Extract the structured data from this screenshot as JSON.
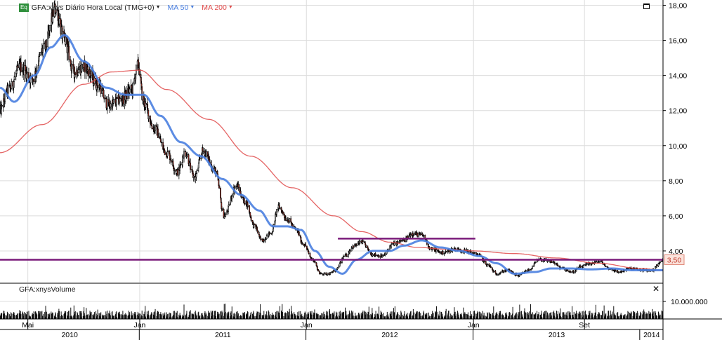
{
  "legend": {
    "badge": "Eq",
    "symbol": "GFA:xnys",
    "interval": "Diário",
    "time": "Hora Local (TMG+0)",
    "ma50": "MA 50",
    "ma200": "MA 200",
    "ma50_color": "#4a7fe0",
    "ma200_color": "#e04a4a"
  },
  "volume_label": "GFA:xnysVolume",
  "last_price_badge": "3,50",
  "chart_data": {
    "type": "candlestick",
    "price_axis": {
      "ylim": [
        2.2,
        18.3
      ],
      "ticks": [
        "18,00",
        "16,00",
        "14,00",
        "12,00",
        "10,00",
        "8,00",
        "6,00",
        "4,00"
      ],
      "tick_values": [
        18,
        16,
        14,
        12,
        10,
        8,
        6,
        4
      ]
    },
    "volume_axis": {
      "ticks": [
        "10.000.000"
      ],
      "tick_values": [
        10000000
      ],
      "ylim": [
        0,
        20000000
      ]
    },
    "x_range": [
      "2010-03-01",
      "2014-02-20"
    ],
    "month_labels": [
      {
        "label": "Mai",
        "date": "2010-05-01"
      },
      {
        "label": "Jan",
        "date": "2011-01-01"
      },
      {
        "label": "Jan",
        "date": "2012-01-01"
      },
      {
        "label": "Jan",
        "date": "2013-01-01"
      },
      {
        "label": "Set",
        "date": "2013-09-01"
      }
    ],
    "year_labels": [
      {
        "label": "2010",
        "start": "2010-03-01",
        "end": "2010-12-31"
      },
      {
        "label": "2011",
        "start": "2011-01-01",
        "end": "2011-12-31"
      },
      {
        "label": "2012",
        "start": "2012-01-01",
        "end": "2012-12-31"
      },
      {
        "label": "2013",
        "start": "2013-01-01",
        "end": "2013-12-31"
      },
      {
        "label": "2014",
        "start": "2014-01-01",
        "end": "2014-02-20"
      }
    ],
    "price_anchors": [
      [
        "2010-03-01",
        12.0
      ],
      [
        "2010-03-20",
        13.2
      ],
      [
        "2010-04-15",
        14.5
      ],
      [
        "2010-05-10",
        13.8
      ],
      [
        "2010-06-05",
        15.5
      ],
      [
        "2010-07-01",
        17.8
      ],
      [
        "2010-07-20",
        16.0
      ],
      [
        "2010-08-10",
        14.2
      ],
      [
        "2010-09-01",
        14.5
      ],
      [
        "2010-10-01",
        13.5
      ],
      [
        "2010-10-25",
        12.3
      ],
      [
        "2010-11-20",
        12.6
      ],
      [
        "2010-12-15",
        13.2
      ],
      [
        "2010-12-28",
        14.6
      ],
      [
        "2011-01-10",
        12.4
      ],
      [
        "2011-02-01",
        11.0
      ],
      [
        "2011-03-01",
        9.6
      ],
      [
        "2011-03-25",
        8.5
      ],
      [
        "2011-04-10",
        9.6
      ],
      [
        "2011-05-01",
        8.2
      ],
      [
        "2011-05-20",
        9.7
      ],
      [
        "2011-06-15",
        8.6
      ],
      [
        "2011-07-05",
        6.0
      ],
      [
        "2011-08-01",
        7.7
      ],
      [
        "2011-08-20",
        6.8
      ],
      [
        "2011-09-10",
        5.4
      ],
      [
        "2011-09-25",
        4.6
      ],
      [
        "2011-10-15",
        5.0
      ],
      [
        "2011-11-01",
        6.5
      ],
      [
        "2011-11-20",
        5.8
      ],
      [
        "2011-12-10",
        5.2
      ],
      [
        "2011-12-25",
        4.4
      ],
      [
        "2012-01-15",
        3.5
      ],
      [
        "2012-02-01",
        2.7
      ],
      [
        "2012-02-20",
        2.7
      ],
      [
        "2012-03-05",
        2.9
      ],
      [
        "2012-03-25",
        3.7
      ],
      [
        "2012-04-15",
        4.3
      ],
      [
        "2012-05-01",
        4.5
      ],
      [
        "2012-05-25",
        3.8
      ],
      [
        "2012-06-15",
        3.7
      ],
      [
        "2012-07-10",
        4.4
      ],
      [
        "2012-08-01",
        4.6
      ],
      [
        "2012-08-20",
        5.0
      ],
      [
        "2012-09-10",
        4.9
      ],
      [
        "2012-10-01",
        4.1
      ],
      [
        "2012-10-25",
        3.9
      ],
      [
        "2012-11-20",
        4.1
      ],
      [
        "2012-12-15",
        4.0
      ],
      [
        "2013-01-10",
        3.8
      ],
      [
        "2013-02-01",
        3.2
      ],
      [
        "2013-02-20",
        2.7
      ],
      [
        "2013-03-15",
        2.9
      ],
      [
        "2013-04-10",
        2.6
      ],
      [
        "2013-05-01",
        2.9
      ],
      [
        "2013-05-25",
        3.5
      ],
      [
        "2013-06-20",
        3.4
      ],
      [
        "2013-07-15",
        3.0
      ],
      [
        "2013-08-05",
        2.8
      ],
      [
        "2013-08-25",
        3.1
      ],
      [
        "2013-09-15",
        3.3
      ],
      [
        "2013-10-05",
        3.4
      ],
      [
        "2013-10-25",
        3.0
      ],
      [
        "2013-11-15",
        2.8
      ],
      [
        "2013-12-10",
        3.0
      ],
      [
        "2014-01-10",
        2.9
      ],
      [
        "2014-01-28",
        2.9
      ],
      [
        "2014-02-12",
        3.3
      ],
      [
        "2014-02-20",
        3.5
      ]
    ],
    "ma50_anchors": [
      [
        "2010-03-01",
        13.3
      ],
      [
        "2010-04-01",
        12.5
      ],
      [
        "2010-05-15",
        14.0
      ],
      [
        "2010-06-20",
        15.6
      ],
      [
        "2010-07-20",
        16.3
      ],
      [
        "2010-09-01",
        14.8
      ],
      [
        "2010-10-20",
        13.3
      ],
      [
        "2010-12-01",
        12.9
      ],
      [
        "2011-01-10",
        12.9
      ],
      [
        "2011-02-15",
        11.7
      ],
      [
        "2011-04-01",
        10.2
      ],
      [
        "2011-05-15",
        9.4
      ],
      [
        "2011-07-01",
        8.1
      ],
      [
        "2011-08-10",
        7.2
      ],
      [
        "2011-09-20",
        6.3
      ],
      [
        "2011-10-20",
        5.4
      ],
      [
        "2011-11-20",
        5.4
      ],
      [
        "2011-12-20",
        5.2
      ],
      [
        "2012-01-20",
        4.0
      ],
      [
        "2012-02-20",
        3.1
      ],
      [
        "2012-03-20",
        2.7
      ],
      [
        "2012-04-20",
        3.5
      ],
      [
        "2012-05-25",
        4.0
      ],
      [
        "2012-07-01",
        4.0
      ],
      [
        "2012-08-01",
        4.3
      ],
      [
        "2012-09-10",
        4.6
      ],
      [
        "2012-10-20",
        4.2
      ],
      [
        "2012-12-01",
        4.0
      ],
      [
        "2013-01-15",
        3.7
      ],
      [
        "2013-02-20",
        3.3
      ],
      [
        "2013-04-01",
        2.7
      ],
      [
        "2013-05-15",
        2.8
      ],
      [
        "2013-06-20",
        3.0
      ],
      [
        "2013-08-01",
        3.0
      ],
      [
        "2013-09-15",
        2.95
      ],
      [
        "2013-11-01",
        3.0
      ],
      [
        "2013-12-15",
        2.9
      ],
      [
        "2014-02-20",
        2.9
      ]
    ],
    "ma200_anchors": [
      [
        "2010-03-01",
        9.6
      ],
      [
        "2010-06-01",
        11.2
      ],
      [
        "2010-09-01",
        13.5
      ],
      [
        "2010-11-01",
        14.2
      ],
      [
        "2011-01-01",
        14.3
      ],
      [
        "2011-03-01",
        13.2
      ],
      [
        "2011-06-01",
        11.5
      ],
      [
        "2011-09-01",
        9.4
      ],
      [
        "2011-12-01",
        7.6
      ],
      [
        "2012-03-01",
        6.0
      ],
      [
        "2012-05-01",
        5.1
      ],
      [
        "2012-07-01",
        4.5
      ],
      [
        "2012-09-01",
        4.2
      ],
      [
        "2012-11-01",
        4.1
      ],
      [
        "2013-01-01",
        4.0
      ],
      [
        "2013-04-01",
        3.85
      ],
      [
        "2013-07-01",
        3.6
      ],
      [
        "2013-10-01",
        3.3
      ],
      [
        "2014-01-01",
        3.0
      ],
      [
        "2014-02-20",
        2.9
      ]
    ],
    "support_line": {
      "y": 3.5,
      "color": "#7a1a7a",
      "start": "2010-03-01",
      "end": "2014-02-20"
    },
    "resistance_line": {
      "y": 4.7,
      "color": "#7a1a7a",
      "start": "2012-03-10",
      "end": "2013-01-05"
    }
  }
}
